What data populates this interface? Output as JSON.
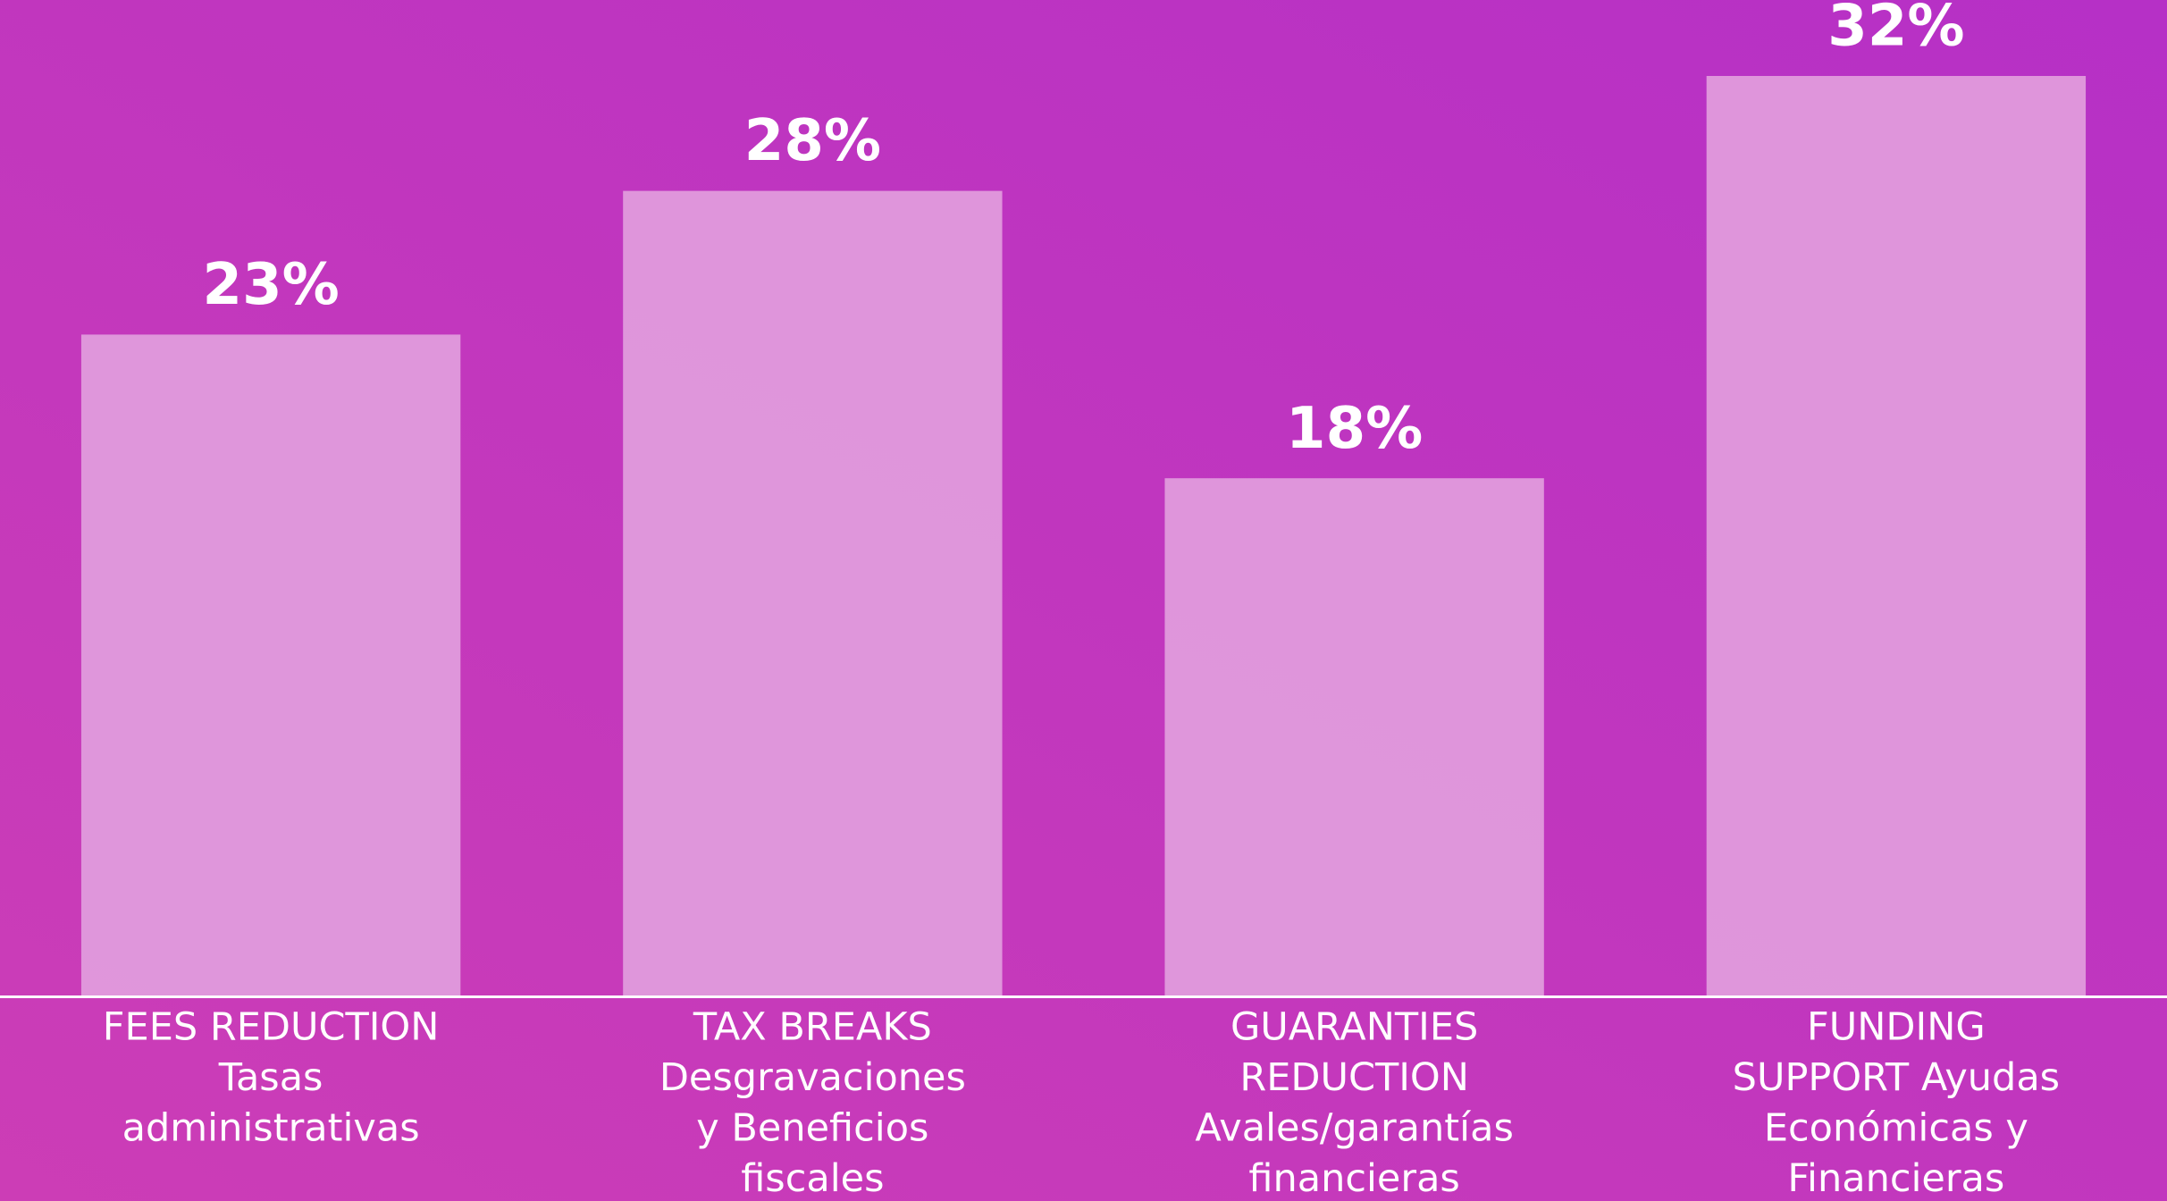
{
  "chart_data": {
    "type": "bar",
    "categories": [
      [
        "FEES REDUCTION",
        "Tasas",
        "administrativas"
      ],
      [
        "TAX BREAKS",
        "Desgravaciones",
        "y Beneficios",
        "fiscales"
      ],
      [
        "GUARANTIES",
        "REDUCTION",
        "Avales/garantías",
        "financieras"
      ],
      [
        "FUNDING",
        "SUPPORT Ayudas",
        "Económicas y",
        "Financieras"
      ]
    ],
    "values": [
      23,
      28,
      18,
      32
    ],
    "value_labels": [
      "23%",
      "28%",
      "18%",
      "32%"
    ],
    "color": "#e09bdc",
    "ylim": [
      0,
      32
    ]
  }
}
